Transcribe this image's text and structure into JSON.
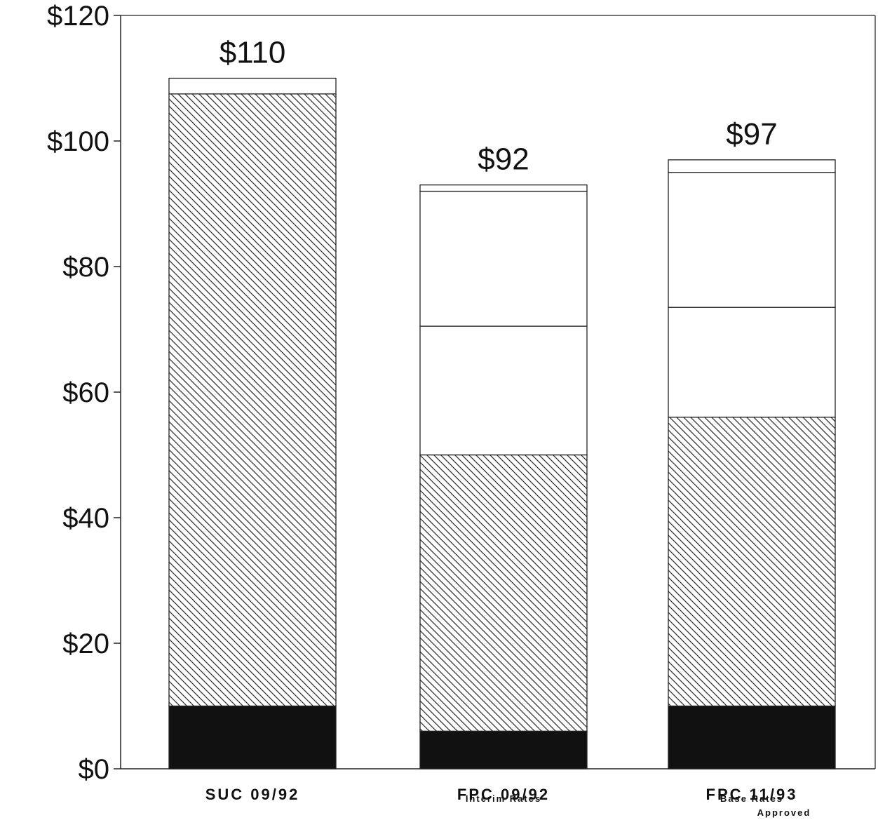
{
  "chart_data": {
    "type": "bar",
    "stacked": true,
    "categories": [
      "SUC 09/92",
      "FPC 09/92",
      "FPC 11/93"
    ],
    "category_sublabels": [
      [],
      [
        "Interim Rates"
      ],
      [
        "Base Rates",
        "Approved"
      ]
    ],
    "series": [
      {
        "values": [
          10,
          6,
          10
        ],
        "pattern": "solid"
      },
      {
        "values": [
          97.5,
          44,
          46
        ],
        "pattern": "hatch"
      },
      {
        "values": [
          0,
          20.5,
          17.5
        ],
        "pattern": "blank"
      },
      {
        "values": [
          0,
          21.5,
          21.5
        ],
        "pattern": "blank"
      },
      {
        "values": [
          2.5,
          1,
          2
        ],
        "pattern": "blank"
      }
    ],
    "totals": [
      110,
      92,
      97
    ],
    "total_labels": [
      "$110",
      "$92",
      "$97"
    ],
    "ylim": [
      0,
      120
    ],
    "yticks": [
      0,
      20,
      40,
      60,
      80,
      100,
      120
    ],
    "ytick_labels": [
      "$0",
      "$20",
      "$40",
      "$60",
      "$80",
      "$100",
      "$120"
    ],
    "title": "",
    "xlabel": "",
    "ylabel": "",
    "grid": false,
    "colors": {
      "solid": "#111111",
      "line": "#222222",
      "background": "#ffffff"
    }
  }
}
